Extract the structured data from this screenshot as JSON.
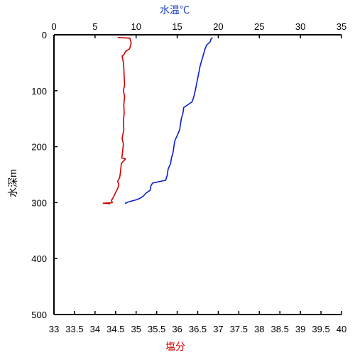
{
  "chart_data": {
    "type": "line",
    "title": "",
    "y_axis": {
      "label": "水深m",
      "range": [
        0,
        500
      ],
      "ticks": [
        0,
        100,
        200,
        300,
        400,
        500
      ],
      "inverted": true
    },
    "x_axis_top": {
      "label": "水温℃",
      "label_color": "#1f3fbf",
      "range": [
        0,
        35
      ],
      "ticks": [
        0,
        5,
        10,
        15,
        20,
        25,
        30,
        35
      ]
    },
    "x_axis_bottom": {
      "label": "塩分",
      "label_color": "#cc0000",
      "range": [
        33,
        40
      ],
      "ticks": [
        "33",
        "33.5",
        "34",
        "34.5",
        "35",
        "35.5",
        "36",
        "36.5",
        "37",
        "37.5",
        "38",
        "38.5",
        "39",
        "39.5",
        "40"
      ]
    },
    "grid": false,
    "series": [
      {
        "axis": "top",
        "color": "#0a1fcc",
        "points": [
          [
            19.3,
            5
          ],
          [
            19.1,
            8
          ],
          [
            19.0,
            13
          ],
          [
            18.6,
            18
          ],
          [
            18.4,
            25
          ],
          [
            18.2,
            35
          ],
          [
            18.0,
            45
          ],
          [
            17.8,
            55
          ],
          [
            17.6,
            70
          ],
          [
            17.4,
            85
          ],
          [
            17.2,
            100
          ],
          [
            17.0,
            112
          ],
          [
            16.8,
            120
          ],
          [
            16.3,
            125
          ],
          [
            15.8,
            130
          ],
          [
            15.7,
            140
          ],
          [
            15.5,
            150
          ],
          [
            15.4,
            160
          ],
          [
            15.3,
            170
          ],
          [
            15.0,
            180
          ],
          [
            14.7,
            190
          ],
          [
            14.6,
            200
          ],
          [
            14.5,
            210
          ],
          [
            14.3,
            220
          ],
          [
            14.2,
            230
          ],
          [
            13.9,
            240
          ],
          [
            13.8,
            250
          ],
          [
            13.6,
            260
          ],
          [
            12.0,
            265
          ],
          [
            11.8,
            270
          ],
          [
            11.7,
            278
          ],
          [
            11.2,
            283
          ],
          [
            10.9,
            288
          ],
          [
            10.5,
            292
          ],
          [
            10.0,
            295
          ],
          [
            9.5,
            297
          ],
          [
            9.0,
            299
          ],
          [
            8.7,
            301
          ],
          [
            8.8,
            302
          ]
        ]
      },
      {
        "axis": "bottom",
        "color": "#cc0000",
        "points": [
          [
            34.55,
            5
          ],
          [
            34.85,
            6
          ],
          [
            34.88,
            15
          ],
          [
            34.84,
            25
          ],
          [
            34.74,
            30
          ],
          [
            34.71,
            35
          ],
          [
            34.66,
            38
          ],
          [
            34.69,
            50
          ],
          [
            34.7,
            60
          ],
          [
            34.71,
            75
          ],
          [
            34.72,
            90
          ],
          [
            34.69,
            100
          ],
          [
            34.72,
            110
          ],
          [
            34.7,
            125
          ],
          [
            34.71,
            140
          ],
          [
            34.69,
            155
          ],
          [
            34.7,
            170
          ],
          [
            34.66,
            185
          ],
          [
            34.69,
            195
          ],
          [
            34.67,
            210
          ],
          [
            34.65,
            220
          ],
          [
            34.74,
            222
          ],
          [
            34.64,
            230
          ],
          [
            34.62,
            245
          ],
          [
            34.6,
            255
          ],
          [
            34.55,
            262
          ],
          [
            34.58,
            268
          ],
          [
            34.55,
            275
          ],
          [
            34.5,
            282
          ],
          [
            34.45,
            290
          ],
          [
            34.4,
            296
          ],
          [
            34.42,
            300
          ],
          [
            34.2,
            301
          ],
          [
            34.37,
            302
          ]
        ]
      }
    ]
  }
}
